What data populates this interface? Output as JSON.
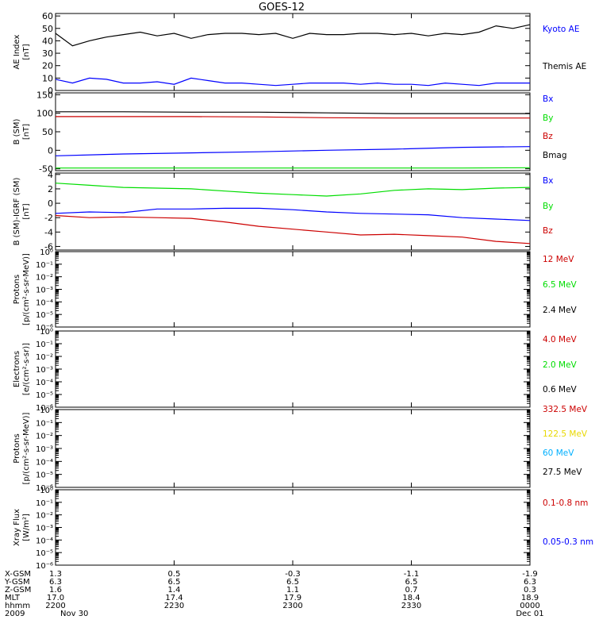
{
  "title": "GOES-12",
  "colors": {
    "black": "#000000",
    "blue": "#0000ff",
    "green": "#00dd00",
    "red": "#cc0000",
    "yellow": "#e8d800",
    "cyan": "#00b0ff"
  },
  "chart_data": [
    {
      "type": "line",
      "ylabel_lines": [
        "AE Index",
        "[nT]"
      ],
      "ylim": [
        0,
        62
      ],
      "yticks": [
        0,
        10,
        20,
        30,
        40,
        50,
        60
      ],
      "yscale": "linear",
      "xlim": [
        0,
        140
      ],
      "series": [
        {
          "name": "Kyoto AE",
          "color": "#0000ff",
          "x": [
            0,
            5,
            10,
            15,
            20,
            25,
            30,
            35,
            40,
            45,
            50,
            55,
            60,
            65,
            70,
            75,
            80,
            85,
            90,
            95,
            100,
            105,
            110,
            115,
            120,
            125,
            130,
            135,
            140
          ],
          "y": [
            9,
            6,
            10,
            9,
            6,
            6,
            7,
            5,
            10,
            8,
            6,
            6,
            5,
            4,
            5,
            6,
            6,
            6,
            5,
            6,
            5,
            5,
            4,
            6,
            5,
            4,
            6,
            6,
            6
          ]
        },
        {
          "name": "Themis AE",
          "color": "#000000",
          "x": [
            0,
            5,
            10,
            15,
            20,
            25,
            30,
            35,
            40,
            45,
            50,
            55,
            60,
            65,
            70,
            75,
            80,
            85,
            90,
            95,
            100,
            105,
            110,
            115,
            120,
            125,
            130,
            135,
            140
          ],
          "y": [
            46,
            36,
            40,
            43,
            45,
            47,
            44,
            46,
            42,
            45,
            46,
            46,
            45,
            46,
            42,
            46,
            45,
            45,
            46,
            46,
            45,
            46,
            44,
            46,
            45,
            47,
            52,
            50,
            53
          ]
        }
      ]
    },
    {
      "type": "line",
      "ylabel_lines": [
        "B (SM)",
        "[nT]"
      ],
      "ylim": [
        -55,
        155
      ],
      "yticks": [
        -50,
        0,
        50,
        100,
        150
      ],
      "yscale": "linear",
      "xlim": [
        0,
        140
      ],
      "series": [
        {
          "name": "Bx",
          "color": "#0000ff",
          "x": [
            0,
            20,
            40,
            60,
            80,
            100,
            120,
            140
          ],
          "y": [
            -15,
            -10,
            -7,
            -4,
            0,
            3,
            8,
            10
          ]
        },
        {
          "name": "By",
          "color": "#00dd00",
          "x": [
            0,
            40,
            80,
            120,
            140
          ],
          "y": [
            -48,
            -48,
            -48,
            -48,
            -47
          ]
        },
        {
          "name": "Bz",
          "color": "#cc0000",
          "x": [
            0,
            20,
            40,
            60,
            80,
            100,
            120,
            140
          ],
          "y": [
            91,
            91,
            91,
            90,
            88,
            87,
            87,
            87
          ]
        },
        {
          "name": "Bmag",
          "color": "#000000",
          "x": [
            0,
            20,
            40,
            60,
            80,
            100,
            120,
            140
          ],
          "y": [
            104,
            104,
            103,
            103,
            101,
            99,
            99,
            99
          ]
        }
      ]
    },
    {
      "type": "line",
      "ylabel_lines": [
        "B (SM)-IGRF (SM)",
        "[nT]"
      ],
      "ylim": [
        -6.5,
        4.2
      ],
      "yticks": [
        -6,
        -4,
        -2,
        0,
        2,
        4
      ],
      "yscale": "linear",
      "xlim": [
        0,
        140
      ],
      "series": [
        {
          "name": "Bx",
          "color": "#0000ff",
          "x": [
            0,
            10,
            20,
            30,
            40,
            50,
            60,
            70,
            80,
            90,
            100,
            110,
            120,
            130,
            140
          ],
          "y": [
            -1.4,
            -1.2,
            -1.3,
            -0.8,
            -0.8,
            -0.7,
            -0.7,
            -0.9,
            -1.2,
            -1.4,
            -1.5,
            -1.6,
            -2.0,
            -2.2,
            -2.4
          ]
        },
        {
          "name": "By",
          "color": "#00dd00",
          "x": [
            0,
            10,
            20,
            30,
            40,
            50,
            60,
            70,
            80,
            90,
            100,
            110,
            120,
            130,
            140
          ],
          "y": [
            2.8,
            2.5,
            2.2,
            2.1,
            2.0,
            1.7,
            1.4,
            1.2,
            1.0,
            1.3,
            1.8,
            2.0,
            1.9,
            2.1,
            2.2
          ]
        },
        {
          "name": "Bz",
          "color": "#cc0000",
          "x": [
            0,
            10,
            20,
            30,
            40,
            50,
            60,
            70,
            80,
            90,
            100,
            110,
            120,
            130,
            140
          ],
          "y": [
            -1.7,
            -2.0,
            -1.9,
            -2.0,
            -2.1,
            -2.6,
            -3.2,
            -3.6,
            -4.0,
            -4.4,
            -4.3,
            -4.5,
            -4.7,
            -5.3,
            -5.6
          ]
        }
      ]
    },
    {
      "type": "line",
      "ylabel_lines": [
        "Protons",
        "[p/(cm²-s-sr-MeV)]"
      ],
      "yscale": "log",
      "ylim": [
        1e-06,
        1
      ],
      "ytick_labels": [
        "10⁻⁶",
        "10⁻⁵",
        "10⁻⁴",
        "10⁻³",
        "10⁻²",
        "10⁻¹",
        "10⁰"
      ],
      "series": [
        {
          "name": "12 MeV",
          "color": "#cc0000",
          "values": []
        },
        {
          "name": "6.5 MeV",
          "color": "#00dd00",
          "values": []
        },
        {
          "name": "2.4 MeV",
          "color": "#000000",
          "values": []
        }
      ]
    },
    {
      "type": "line",
      "ylabel_lines": [
        "Electrons",
        "[e/(cm²-s-sr)]"
      ],
      "yscale": "log",
      "ylim": [
        1e-06,
        1
      ],
      "ytick_labels": [
        "10⁻⁶",
        "10⁻⁵",
        "10⁻⁴",
        "10⁻³",
        "10⁻²",
        "10⁻¹",
        "10⁰"
      ],
      "series": [
        {
          "name": "4.0 MeV",
          "color": "#cc0000",
          "values": []
        },
        {
          "name": "2.0 MeV",
          "color": "#00dd00",
          "values": []
        },
        {
          "name": "0.6 MeV",
          "color": "#000000",
          "values": []
        }
      ]
    },
    {
      "type": "line",
      "ylabel_lines": [
        "Protons",
        "[p/(cm²-s-sr-MeV)]"
      ],
      "yscale": "log",
      "ylim": [
        1e-06,
        1
      ],
      "ytick_labels": [
        "10⁻⁶",
        "10⁻⁵",
        "10⁻⁴",
        "10⁻³",
        "10⁻²",
        "10⁻¹",
        "10⁰"
      ],
      "series": [
        {
          "name": "332.5 MeV",
          "color": "#cc0000",
          "values": []
        },
        {
          "name": "122.5 MeV",
          "color": "#e8d800",
          "values": []
        },
        {
          "name": "60 MeV",
          "color": "#00b0ff",
          "values": []
        },
        {
          "name": "27.5 MeV",
          "color": "#000000",
          "values": []
        }
      ]
    },
    {
      "type": "line",
      "ylabel_lines": [
        "Xray Flux",
        "[W/m²]"
      ],
      "yscale": "log",
      "ylim": [
        1e-06,
        1
      ],
      "ytick_labels": [
        "10⁻⁶",
        "10⁻⁵",
        "10⁻⁴",
        "10⁻³",
        "10⁻²",
        "10⁻¹",
        "10⁰"
      ],
      "series": [
        {
          "name": "0.1-0.8 nm",
          "color": "#cc0000",
          "values": []
        },
        {
          "name": "0.05-0.3 nm",
          "color": "#0000ff",
          "values": []
        }
      ]
    }
  ],
  "footer": {
    "row_labels": [
      "X-GSM",
      "Y-GSM",
      "Z-GSM",
      "MLT",
      "hhmm",
      "2009"
    ],
    "columns": [
      [
        "1.3",
        "6.3",
        "1.6",
        "17.0",
        "2200",
        "Nov 30"
      ],
      [
        "0.5",
        "6.5",
        "1.4",
        "17.4",
        "2230",
        ""
      ],
      [
        "-0.3",
        "6.5",
        "1.1",
        "17.9",
        "2300",
        ""
      ],
      [
        "-1.1",
        "6.5",
        "0.7",
        "18.4",
        "2330",
        ""
      ],
      [
        "-1.9",
        "6.3",
        "0.3",
        "18.9",
        "0000",
        "Dec 01"
      ]
    ]
  }
}
